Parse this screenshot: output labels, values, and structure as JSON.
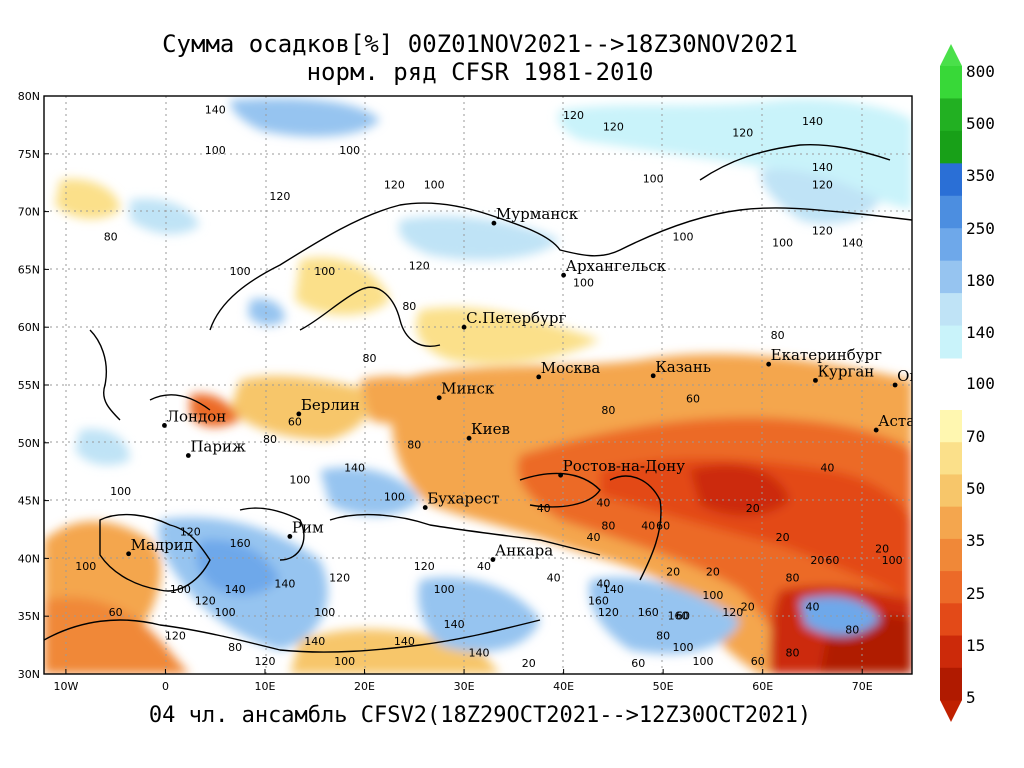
{
  "title": {
    "line1": "Сумма осадков[%] 00Z01NOV2021-->18Z30NOV2021",
    "line2": "норм. ряд CFSR 1981-2010"
  },
  "footer": "04 чл. ансамбль CFSV2(18Z29OCT2021-->12Z30OCT2021)",
  "axes": {
    "lat_labels": [
      "80N",
      "75N",
      "70N",
      "65N",
      "60N",
      "55N",
      "50N",
      "45N",
      "40N",
      "35N",
      "30N"
    ],
    "lon_labels": [
      "10W",
      "0",
      "10E",
      "20E",
      "30E",
      "40E",
      "50E",
      "60E",
      "70E"
    ]
  },
  "colorbar": {
    "labels": [
      "800",
      "500",
      "350",
      "250",
      "180",
      "140",
      "100",
      "70",
      "50",
      "35",
      "25",
      "15",
      "5"
    ],
    "colors_wet": [
      "#38d838",
      "#22b022",
      "#18a018",
      "#2a6fd6",
      "#4c8ee0",
      "#6ea8ea",
      "#96c4f0",
      "#bfe3f6",
      "#c9f3fa"
    ],
    "colors_dry": [
      "#fff7b0",
      "#fbe08a",
      "#f7c66a",
      "#f4a64e",
      "#f08838",
      "#ec6a28",
      "#e34a18",
      "#cc2a0a",
      "#b01a00"
    ]
  },
  "cities": [
    {
      "name": "Мурманск",
      "lon": 33,
      "lat": 69
    },
    {
      "name": "Архангельск",
      "lon": 40,
      "lat": 64.5
    },
    {
      "name": "С.Петербург",
      "lon": 30,
      "lat": 60
    },
    {
      "name": "Москва",
      "lon": 37.5,
      "lat": 55.7
    },
    {
      "name": "Казань",
      "lon": 49,
      "lat": 55.8
    },
    {
      "name": "Екатеринбург",
      "lon": 60.6,
      "lat": 56.8
    },
    {
      "name": "Курган",
      "lon": 65.3,
      "lat": 55.4
    },
    {
      "name": "Омск",
      "lon": 73.3,
      "lat": 55
    },
    {
      "name": "Астана",
      "lon": 71.4,
      "lat": 51.1
    },
    {
      "name": "Минск",
      "lon": 27.5,
      "lat": 53.9
    },
    {
      "name": "Берлин",
      "lon": 13.4,
      "lat": 52.5
    },
    {
      "name": "Лондон",
      "lon": -0.1,
      "lat": 51.5
    },
    {
      "name": "Париж",
      "lon": 2.3,
      "lat": 48.9
    },
    {
      "name": "Киев",
      "lon": 30.5,
      "lat": 50.4
    },
    {
      "name": "Ростов-на-Дону",
      "lon": 39.7,
      "lat": 47.2
    },
    {
      "name": "Бухарест",
      "lon": 26.1,
      "lat": 44.4
    },
    {
      "name": "Рим",
      "lon": 12.5,
      "lat": 41.9
    },
    {
      "name": "Мадрид",
      "lon": -3.7,
      "lat": 40.4
    },
    {
      "name": "Анкара",
      "lon": 32.9,
      "lat": 39.9
    }
  ],
  "contour_labels": [
    {
      "t": "140",
      "lon": 5,
      "lat": 78.5
    },
    {
      "t": "120",
      "lon": 41,
      "lat": 78
    },
    {
      "t": "120",
      "lon": 45,
      "lat": 77
    },
    {
      "t": "140",
      "lon": 65,
      "lat": 77.5
    },
    {
      "t": "120",
      "lon": 58,
      "lat": 76.5
    },
    {
      "t": "100",
      "lon": 5,
      "lat": 75
    },
    {
      "t": "100",
      "lon": 18.5,
      "lat": 75
    },
    {
      "t": "120",
      "lon": 11.5,
      "lat": 71
    },
    {
      "t": "120",
      "lon": 23,
      "lat": 72
    },
    {
      "t": "100",
      "lon": 27,
      "lat": 72
    },
    {
      "t": "80",
      "lon": -5.5,
      "lat": 67.5
    },
    {
      "t": "100",
      "lon": 49,
      "lat": 72.5
    },
    {
      "t": "100",
      "lon": 52,
      "lat": 67.5
    },
    {
      "t": "140",
      "lon": 66,
      "lat": 73.5
    },
    {
      "t": "120",
      "lon": 66,
      "lat": 72
    },
    {
      "t": "100",
      "lon": 62,
      "lat": 67
    },
    {
      "t": "120",
      "lon": 66,
      "lat": 68
    },
    {
      "t": "140",
      "lon": 69,
      "lat": 67
    },
    {
      "t": "100",
      "lon": 7.5,
      "lat": 64.5
    },
    {
      "t": "100",
      "lon": 16,
      "lat": 64.5
    },
    {
      "t": "120",
      "lon": 25.5,
      "lat": 65
    },
    {
      "t": "100",
      "lon": 42,
      "lat": 63.5
    },
    {
      "t": "80",
      "lon": 24.5,
      "lat": 61.5
    },
    {
      "t": "80",
      "lon": 61.5,
      "lat": 59
    },
    {
      "t": "80",
      "lon": 20.5,
      "lat": 57
    },
    {
      "t": "60",
      "lon": 13,
      "lat": 51.5
    },
    {
      "t": "80",
      "lon": 10.5,
      "lat": 50
    },
    {
      "t": "80",
      "lon": 44.5,
      "lat": 52.5
    },
    {
      "t": "60",
      "lon": 53,
      "lat": 53.5
    },
    {
      "t": "80",
      "lon": 25,
      "lat": 49.5
    },
    {
      "t": "100",
      "lon": -4.5,
      "lat": 45.5
    },
    {
      "t": "100",
      "lon": 13.5,
      "lat": 46.5
    },
    {
      "t": "140",
      "lon": 19,
      "lat": 47.5
    },
    {
      "t": "100",
      "lon": 23,
      "lat": 45
    },
    {
      "t": "120",
      "lon": 2.5,
      "lat": 42
    },
    {
      "t": "160",
      "lon": 7.5,
      "lat": 41
    },
    {
      "t": "140",
      "lon": 7,
      "lat": 37
    },
    {
      "t": "120",
      "lon": 4,
      "lat": 36
    },
    {
      "t": "100",
      "lon": -8,
      "lat": 39
    },
    {
      "t": "60",
      "lon": -5,
      "lat": 35
    },
    {
      "t": "100",
      "lon": 1.5,
      "lat": 37
    },
    {
      "t": "140",
      "lon": 12,
      "lat": 37.5
    },
    {
      "t": "100",
      "lon": 16,
      "lat": 35
    },
    {
      "t": "120",
      "lon": 17.5,
      "lat": 38
    },
    {
      "t": "100",
      "lon": 6,
      "lat": 35
    },
    {
      "t": "120",
      "lon": 1,
      "lat": 33
    },
    {
      "t": "80",
      "lon": 7,
      "lat": 32
    },
    {
      "t": "140",
      "lon": 15,
      "lat": 32.5
    },
    {
      "t": "100",
      "lon": 18,
      "lat": 30.8
    },
    {
      "t": "140",
      "lon": 24,
      "lat": 32.5
    },
    {
      "t": "120",
      "lon": 10,
      "lat": 30.8
    },
    {
      "t": "100",
      "lon": 28,
      "lat": 37
    },
    {
      "t": "120",
      "lon": 26,
      "lat": 39
    },
    {
      "t": "140",
      "lon": 29,
      "lat": 34
    },
    {
      "t": "140",
      "lon": 31.5,
      "lat": 31.5
    },
    {
      "t": "40",
      "lon": 38,
      "lat": 44
    },
    {
      "t": "40",
      "lon": 44,
      "lat": 44.5
    },
    {
      "t": "80",
      "lon": 44.5,
      "lat": 42.5
    },
    {
      "t": "40",
      "lon": 48.5,
      "lat": 42.5
    },
    {
      "t": "40",
      "lon": 43,
      "lat": 41.5
    },
    {
      "t": "40",
      "lon": 32,
      "lat": 39
    },
    {
      "t": "40",
      "lon": 44,
      "lat": 37.5
    },
    {
      "t": "140",
      "lon": 45,
      "lat": 37
    },
    {
      "t": "160",
      "lon": 43.5,
      "lat": 36
    },
    {
      "t": "120",
      "lon": 44.5,
      "lat": 35
    },
    {
      "t": "160",
      "lon": 48.5,
      "lat": 35
    },
    {
      "t": "160",
      "lon": 51.5,
      "lat": 34.7
    },
    {
      "t": "80",
      "lon": 50,
      "lat": 33
    },
    {
      "t": "100",
      "lon": 55,
      "lat": 36.5
    },
    {
      "t": "120",
      "lon": 57,
      "lat": 35
    },
    {
      "t": "100",
      "lon": 52,
      "lat": 32
    },
    {
      "t": "100",
      "lon": 54,
      "lat": 30.8
    },
    {
      "t": "60",
      "lon": 47.5,
      "lat": 30.6
    },
    {
      "t": "60",
      "lon": 59.5,
      "lat": 30.8
    },
    {
      "t": "80",
      "lon": 63,
      "lat": 31.5
    },
    {
      "t": "80",
      "lon": 69,
      "lat": 33.5
    },
    {
      "t": "40",
      "lon": 65,
      "lat": 35.5
    },
    {
      "t": "20",
      "lon": 58.5,
      "lat": 35.5
    },
    {
      "t": "20",
      "lon": 62,
      "lat": 41.5
    },
    {
      "t": "20",
      "lon": 65.5,
      "lat": 39.5
    },
    {
      "t": "60",
      "lon": 67,
      "lat": 39.5
    },
    {
      "t": "100",
      "lon": 73,
      "lat": 39.5
    },
    {
      "t": "20",
      "lon": 59,
      "lat": 44
    },
    {
      "t": "40",
      "lon": 66.5,
      "lat": 47.5
    },
    {
      "t": "20",
      "lon": 36.5,
      "lat": 30.6
    },
    {
      "t": "40",
      "lon": 39,
      "lat": 38
    },
    {
      "t": "20",
      "lon": 51,
      "lat": 38.5
    },
    {
      "t": "20",
      "lon": 55,
      "lat": 38.5
    },
    {
      "t": "60",
      "lon": 52,
      "lat": 34.7
    },
    {
      "t": "60",
      "lon": 50,
      "lat": 42.5
    },
    {
      "t": "80",
      "lon": 63,
      "lat": 38
    },
    {
      "t": "20",
      "lon": 72,
      "lat": 40.5
    }
  ]
}
